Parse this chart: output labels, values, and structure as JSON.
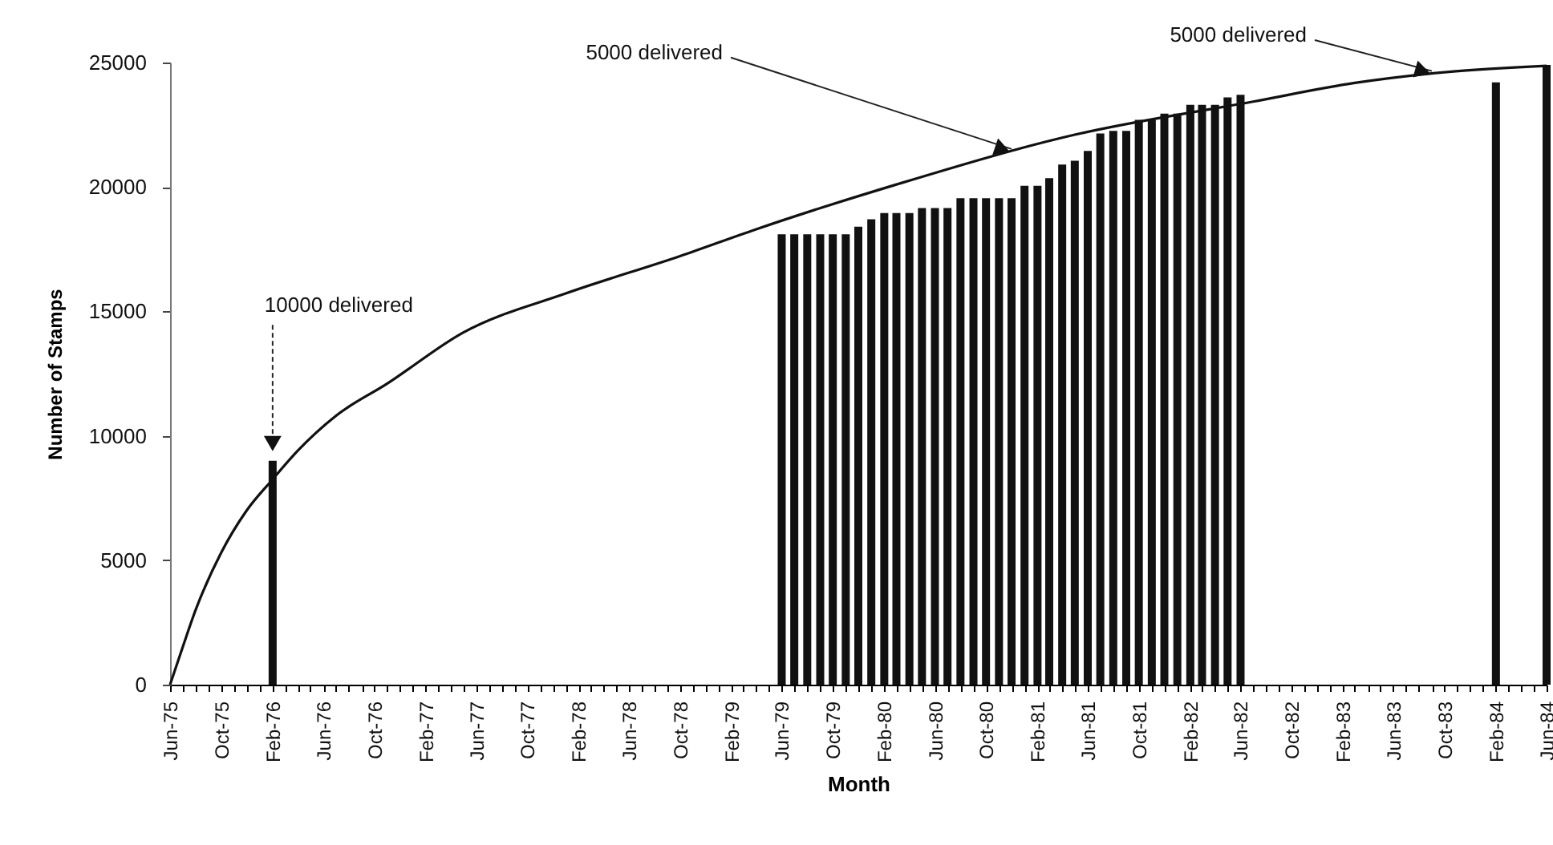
{
  "chart_data": {
    "type": "bar",
    "xlabel": "Month",
    "ylabel": "Number of Stamps",
    "xlim": [
      "1975-06",
      "1984-06"
    ],
    "ylim": [
      0,
      25000
    ],
    "yticks": [
      0,
      5000,
      10000,
      15000,
      20000,
      25000
    ],
    "xticks": [
      {
        "value": "1975-06",
        "label": "Jun-75"
      },
      {
        "value": "1975-07",
        "label": null
      },
      {
        "value": "1975-08",
        "label": null
      },
      {
        "value": "1975-09",
        "label": null
      },
      {
        "value": "1975-10",
        "label": "Oct-75"
      },
      {
        "value": "1975-11",
        "label": null
      },
      {
        "value": "1975-12",
        "label": null
      },
      {
        "value": "1976-01",
        "label": null
      },
      {
        "value": "1976-02",
        "label": "Feb-76"
      },
      {
        "value": "1976-03",
        "label": null
      },
      {
        "value": "1976-04",
        "label": null
      },
      {
        "value": "1976-05",
        "label": null
      },
      {
        "value": "1976-06",
        "label": "Jun-76"
      },
      {
        "value": "1976-07",
        "label": null
      },
      {
        "value": "1976-08",
        "label": null
      },
      {
        "value": "1976-09",
        "label": null
      },
      {
        "value": "1976-10",
        "label": "Oct-76"
      },
      {
        "value": "1976-11",
        "label": null
      },
      {
        "value": "1976-12",
        "label": null
      },
      {
        "value": "1977-01",
        "label": null
      },
      {
        "value": "1977-02",
        "label": "Feb-77"
      },
      {
        "value": "1977-03",
        "label": null
      },
      {
        "value": "1977-04",
        "label": null
      },
      {
        "value": "1977-05",
        "label": null
      },
      {
        "value": "1977-06",
        "label": "Jun-77"
      },
      {
        "value": "1977-07",
        "label": null
      },
      {
        "value": "1977-08",
        "label": null
      },
      {
        "value": "1977-09",
        "label": null
      },
      {
        "value": "1977-10",
        "label": "Oct-77"
      },
      {
        "value": "1977-11",
        "label": null
      },
      {
        "value": "1977-12",
        "label": null
      },
      {
        "value": "1978-01",
        "label": null
      },
      {
        "value": "1978-02",
        "label": "Feb-78"
      },
      {
        "value": "1978-03",
        "label": null
      },
      {
        "value": "1978-04",
        "label": null
      },
      {
        "value": "1978-05",
        "label": null
      },
      {
        "value": "1978-06",
        "label": "Jun-78"
      },
      {
        "value": "1978-07",
        "label": null
      },
      {
        "value": "1978-08",
        "label": null
      },
      {
        "value": "1978-09",
        "label": null
      },
      {
        "value": "1978-10",
        "label": "Oct-78"
      },
      {
        "value": "1978-11",
        "label": null
      },
      {
        "value": "1978-12",
        "label": null
      },
      {
        "value": "1979-01",
        "label": null
      },
      {
        "value": "1979-02",
        "label": "Feb-79"
      },
      {
        "value": "1979-03",
        "label": null
      },
      {
        "value": "1979-04",
        "label": null
      },
      {
        "value": "1979-05",
        "label": null
      },
      {
        "value": "1979-06",
        "label": "Jun-79"
      },
      {
        "value": "1979-07",
        "label": null
      },
      {
        "value": "1979-08",
        "label": null
      },
      {
        "value": "1979-09",
        "label": null
      },
      {
        "value": "1979-10",
        "label": "Oct-79"
      },
      {
        "value": "1979-11",
        "label": null
      },
      {
        "value": "1979-12",
        "label": null
      },
      {
        "value": "1980-01",
        "label": null
      },
      {
        "value": "1980-02",
        "label": "Feb-80"
      },
      {
        "value": "1980-03",
        "label": null
      },
      {
        "value": "1980-04",
        "label": null
      },
      {
        "value": "1980-05",
        "label": null
      },
      {
        "value": "1980-06",
        "label": "Jun-80"
      },
      {
        "value": "1980-07",
        "label": null
      },
      {
        "value": "1980-08",
        "label": null
      },
      {
        "value": "1980-09",
        "label": null
      },
      {
        "value": "1980-10",
        "label": "Oct-80"
      },
      {
        "value": "1980-11",
        "label": null
      },
      {
        "value": "1980-12",
        "label": null
      },
      {
        "value": "1981-01",
        "label": null
      },
      {
        "value": "1981-02",
        "label": "Feb-81"
      },
      {
        "value": "1981-03",
        "label": null
      },
      {
        "value": "1981-04",
        "label": null
      },
      {
        "value": "1981-05",
        "label": null
      },
      {
        "value": "1981-06",
        "label": "Jun-81"
      },
      {
        "value": "1981-07",
        "label": null
      },
      {
        "value": "1981-08",
        "label": null
      },
      {
        "value": "1981-09",
        "label": null
      },
      {
        "value": "1981-10",
        "label": "Oct-81"
      },
      {
        "value": "1981-11",
        "label": null
      },
      {
        "value": "1981-12",
        "label": null
      },
      {
        "value": "1982-01",
        "label": null
      },
      {
        "value": "1982-02",
        "label": "Feb-82"
      },
      {
        "value": "1982-03",
        "label": null
      },
      {
        "value": "1982-04",
        "label": null
      },
      {
        "value": "1982-05",
        "label": null
      },
      {
        "value": "1982-06",
        "label": "Jun-82"
      },
      {
        "value": "1982-07",
        "label": null
      },
      {
        "value": "1982-08",
        "label": null
      },
      {
        "value": "1982-09",
        "label": null
      },
      {
        "value": "1982-10",
        "label": "Oct-82"
      },
      {
        "value": "1982-11",
        "label": null
      },
      {
        "value": "1982-12",
        "label": null
      },
      {
        "value": "1983-01",
        "label": null
      },
      {
        "value": "1983-02",
        "label": "Feb-83"
      },
      {
        "value": "1983-03",
        "label": null
      },
      {
        "value": "1983-04",
        "label": null
      },
      {
        "value": "1983-05",
        "label": null
      },
      {
        "value": "1983-06",
        "label": "Jun-83"
      },
      {
        "value": "1983-07",
        "label": null
      },
      {
        "value": "1983-08",
        "label": null
      },
      {
        "value": "1983-09",
        "label": null
      },
      {
        "value": "1983-10",
        "label": "Oct-83"
      },
      {
        "value": "1983-11",
        "label": null
      },
      {
        "value": "1983-12",
        "label": null
      },
      {
        "value": "1984-01",
        "label": null
      },
      {
        "value": "1984-02",
        "label": "Feb-84"
      },
      {
        "value": "1984-03",
        "label": null
      },
      {
        "value": "1984-04",
        "label": null
      },
      {
        "value": "1984-05",
        "label": null
      },
      {
        "value": "1984-06",
        "label": "Jun-84"
      }
    ],
    "series": [
      {
        "color": "#111111",
        "x": [
          "1976-02",
          "1979-06",
          "1979-07",
          "1979-08",
          "1979-09",
          "1979-10",
          "1979-11",
          "1979-12",
          "1980-01",
          "1980-02",
          "1980-03",
          "1980-04",
          "1980-05",
          "1980-06",
          "1980-07",
          "1980-08",
          "1980-09",
          "1980-10",
          "1980-11",
          "1980-12",
          "1981-01",
          "1981-02",
          "1981-03",
          "1981-04",
          "1981-05",
          "1981-06",
          "1981-07",
          "1981-08",
          "1981-09",
          "1981-10",
          "1981-11",
          "1981-12",
          "1982-01",
          "1982-02",
          "1982-03",
          "1982-04",
          "1982-05",
          "1982-06",
          "1984-02",
          "1984-06"
        ],
        "values": [
          9000,
          18100,
          18100,
          18100,
          18100,
          18100,
          18100,
          18400,
          18700,
          18950,
          18950,
          18950,
          19150,
          19150,
          19150,
          19550,
          19550,
          19550,
          19550,
          19550,
          20050,
          20050,
          20350,
          20900,
          21050,
          21450,
          22150,
          22250,
          22250,
          22700,
          22700,
          22950,
          22950,
          23300,
          23300,
          23300,
          23600,
          23700,
          24200,
          24900
        ]
      },
      {
        "type": "line",
        "color": "#111111",
        "x": [
          "1975-06",
          "1975-07",
          "1975-08",
          "1975-10",
          "1975-12",
          "1976-02",
          "1976-04",
          "1976-07",
          "1976-11",
          "1977-05",
          "1978-01",
          "1978-10",
          "1979-04",
          "1980-03",
          "1981-05",
          "1982-07",
          "1983-03",
          "1983-10",
          "1984-06"
        ],
        "values": [
          0,
          1500,
          3000,
          5300,
          7000,
          8250,
          9400,
          10800,
          12100,
          14150,
          15720,
          17220,
          18300,
          20100,
          22100,
          23430,
          24180,
          24610,
          24870
        ]
      }
    ],
    "annotations": [
      {
        "text": "10000 delivered",
        "x": "1976-02",
        "y": 9300
      },
      {
        "text": "5000 delivered",
        "x": "1980-12",
        "y": 21400
      },
      {
        "text": "5000 delivered",
        "x": "1983-09",
        "y": 24550
      }
    ]
  }
}
